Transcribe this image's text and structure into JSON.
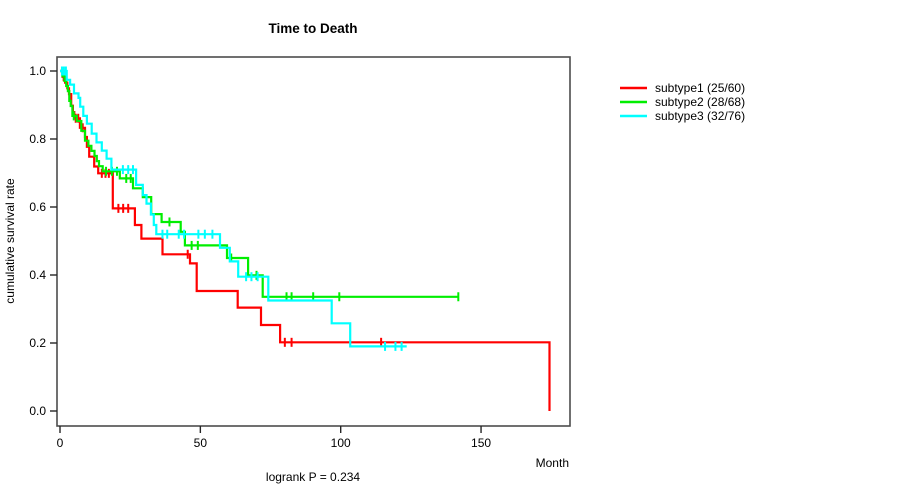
{
  "chart_data": {
    "type": "line",
    "variant": "kaplan-meier-step",
    "title": "Time to Death",
    "xlabel": "Month",
    "ylabel": "cumulative survival rate",
    "footnote": "logrank P = 0.234",
    "xlim": [
      0,
      180
    ],
    "ylim": [
      0.0,
      1.0
    ],
    "x_ticks": [
      0,
      50,
      100,
      150
    ],
    "y_ticks": [
      "0.0",
      "0.2",
      "0.4",
      "0.6",
      "0.8",
      "1.0"
    ],
    "grid": false,
    "legend_position": "right-outside",
    "series": [
      {
        "name": "subtype1",
        "label": "subtype1 (25/60)",
        "color": "#ff0000",
        "points": [
          [
            0,
            1.0
          ],
          [
            0.9,
            0.983
          ],
          [
            1.8,
            0.966
          ],
          [
            2.6,
            0.949
          ],
          [
            3.2,
            0.932
          ],
          [
            4.0,
            0.898
          ],
          [
            4.6,
            0.879
          ],
          [
            5.1,
            0.861
          ],
          [
            7.1,
            0.833
          ],
          [
            8.9,
            0.806
          ],
          [
            9.6,
            0.777
          ],
          [
            10.4,
            0.748
          ],
          [
            12.2,
            0.719
          ],
          [
            13.6,
            0.699
          ],
          [
            18.8,
            0.596
          ],
          [
            26.7,
            0.547
          ],
          [
            29.0,
            0.507
          ],
          [
            36.5,
            0.461
          ],
          [
            46.3,
            0.434
          ],
          [
            48.7,
            0.353
          ],
          [
            63.3,
            0.304
          ],
          [
            71.6,
            0.253
          ],
          [
            78.4,
            0.202
          ],
          [
            174.4,
            0.0
          ]
        ],
        "censor_marks": [
          [
            1.3,
            0.983
          ],
          [
            5.6,
            0.861
          ],
          [
            6.5,
            0.861
          ],
          [
            8.1,
            0.833
          ],
          [
            14.9,
            0.699
          ],
          [
            16.2,
            0.699
          ],
          [
            17.4,
            0.699
          ],
          [
            20.8,
            0.596
          ],
          [
            22.5,
            0.596
          ],
          [
            24.3,
            0.596
          ],
          [
            45.5,
            0.461
          ],
          [
            80.1,
            0.202
          ],
          [
            82.5,
            0.202
          ],
          [
            114.4,
            0.202
          ]
        ]
      },
      {
        "name": "subtype2",
        "label": "subtype2 (28/68)",
        "color": "#00ee00",
        "points": [
          [
            0,
            1.0
          ],
          [
            0.9,
            0.985
          ],
          [
            1.6,
            0.971
          ],
          [
            2.2,
            0.956
          ],
          [
            2.8,
            0.941
          ],
          [
            3.3,
            0.912
          ],
          [
            3.8,
            0.897
          ],
          [
            4.4,
            0.868
          ],
          [
            6.0,
            0.853
          ],
          [
            7.6,
            0.824
          ],
          [
            8.9,
            0.795
          ],
          [
            10.1,
            0.78
          ],
          [
            11.2,
            0.765
          ],
          [
            12.3,
            0.75
          ],
          [
            13.1,
            0.735
          ],
          [
            13.9,
            0.72
          ],
          [
            15.2,
            0.705
          ],
          [
            21.3,
            0.684
          ],
          [
            26.0,
            0.655
          ],
          [
            29.5,
            0.629
          ],
          [
            32.5,
            0.579
          ],
          [
            36.2,
            0.556
          ],
          [
            43.0,
            0.527
          ],
          [
            44.5,
            0.487
          ],
          [
            59.5,
            0.45
          ],
          [
            67.0,
            0.399
          ],
          [
            72.2,
            0.336
          ],
          [
            142.0,
            0.336
          ]
        ],
        "censor_marks": [
          [
            4.9,
            0.868
          ],
          [
            16.4,
            0.705
          ],
          [
            18.5,
            0.705
          ],
          [
            20.3,
            0.705
          ],
          [
            23.6,
            0.684
          ],
          [
            25.2,
            0.684
          ],
          [
            39.0,
            0.556
          ],
          [
            46.9,
            0.487
          ],
          [
            49.1,
            0.487
          ],
          [
            61.0,
            0.45
          ],
          [
            70.0,
            0.399
          ],
          [
            80.7,
            0.336
          ],
          [
            82.5,
            0.336
          ],
          [
            90.2,
            0.336
          ],
          [
            99.5,
            0.336
          ],
          [
            141.9,
            0.336
          ]
        ]
      },
      {
        "name": "subtype3",
        "label": "subtype3 (32/76)",
        "color": "#00ffff",
        "points": [
          [
            0,
            1.0
          ],
          [
            2.4,
            0.974
          ],
          [
            3.6,
            0.96
          ],
          [
            5.0,
            0.934
          ],
          [
            6.6,
            0.921
          ],
          [
            7.2,
            0.895
          ],
          [
            8.3,
            0.868
          ],
          [
            9.6,
            0.845
          ],
          [
            11.3,
            0.816
          ],
          [
            13.0,
            0.79
          ],
          [
            14.9,
            0.766
          ],
          [
            16.6,
            0.742
          ],
          [
            18.3,
            0.71
          ],
          [
            27.1,
            0.665
          ],
          [
            29.5,
            0.635
          ],
          [
            30.8,
            0.61
          ],
          [
            32.4,
            0.578
          ],
          [
            33.4,
            0.547
          ],
          [
            34.3,
            0.52
          ],
          [
            57.0,
            0.48
          ],
          [
            60.5,
            0.44
          ],
          [
            63.5,
            0.395
          ],
          [
            74.2,
            0.325
          ],
          [
            96.8,
            0.258
          ],
          [
            103.4,
            0.19
          ],
          [
            123.5,
            0.19
          ]
        ],
        "censor_marks": [
          [
            0.7,
            1.0
          ],
          [
            1.4,
            1.0
          ],
          [
            2.1,
            1.0
          ],
          [
            22.4,
            0.71
          ],
          [
            24.3,
            0.71
          ],
          [
            26.0,
            0.71
          ],
          [
            36.5,
            0.52
          ],
          [
            38.2,
            0.52
          ],
          [
            42.3,
            0.52
          ],
          [
            44.2,
            0.52
          ],
          [
            49.3,
            0.52
          ],
          [
            51.6,
            0.52
          ],
          [
            54.3,
            0.52
          ],
          [
            66.3,
            0.395
          ],
          [
            68.2,
            0.395
          ],
          [
            70.4,
            0.395
          ],
          [
            115.8,
            0.19
          ],
          [
            119.5,
            0.19
          ],
          [
            121.7,
            0.19
          ]
        ]
      }
    ],
    "colors": {
      "axis_box": "#4d4d4d",
      "tick": "#262626",
      "text": "#000000",
      "background": "#ffffff"
    }
  }
}
